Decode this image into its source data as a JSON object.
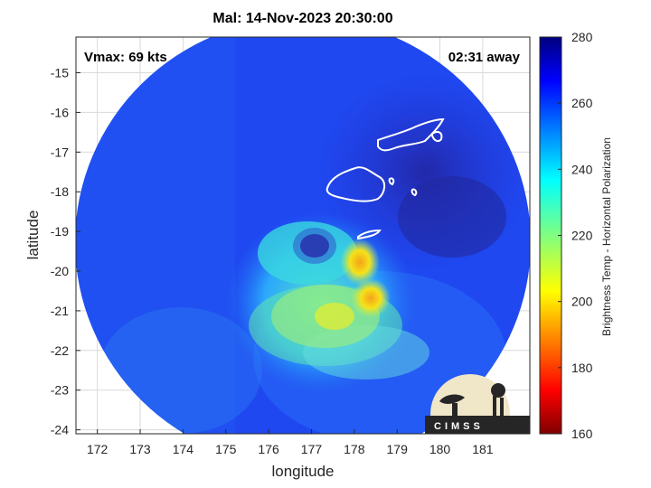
{
  "title": "Mal: 14-Nov-2023 20:30:00",
  "vmax_label": "Vmax: 69 kts",
  "time_away_label": "02:31 away",
  "logo_text": "CIMSS",
  "x_axis": {
    "label": "longitude",
    "ticks": [
      172,
      173,
      174,
      175,
      176,
      177,
      178,
      179,
      180,
      181
    ],
    "range": [
      171.5,
      182.1
    ]
  },
  "y_axis": {
    "label": "latitude",
    "ticks": [
      -15,
      -16,
      -17,
      -18,
      -19,
      -20,
      -21,
      -22,
      -23,
      -24
    ],
    "range": [
      -24.1,
      -14.1
    ]
  },
  "colorbar": {
    "label": "Brightness Temp - Horizontal Polarization",
    "ticks": [
      280,
      260,
      240,
      220,
      200,
      180,
      160
    ],
    "range": [
      160,
      280
    ],
    "colormap": "jet"
  },
  "colors": {
    "background_field": "#1f45ee",
    "cold_field": "#2a2ab8",
    "warm_core": "#f5e21a",
    "coastline": "#ffffff"
  }
}
